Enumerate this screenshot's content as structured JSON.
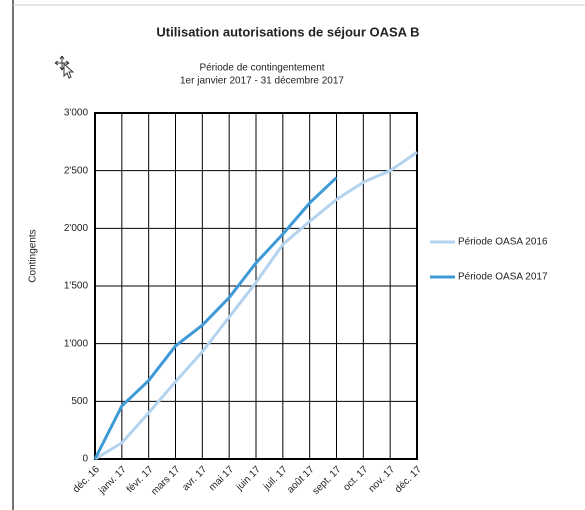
{
  "chart_data": {
    "type": "line",
    "title": "Utilisation autorisations de séjour OASA B",
    "subtitle": [
      "Période de contingentement",
      "1er janvier 2017 - 31 décembre 2017"
    ],
    "y_label": "Contingents",
    "categories": [
      "déc. 16",
      "janv. 17",
      "févr. 17",
      "mars 17",
      "avr. 17",
      "mai 17",
      "juin 17",
      "juil. 17",
      "août 17",
      "sept. 17",
      "oct. 17",
      "nov. 17",
      "déc. 17"
    ],
    "series": [
      {
        "name": "Période OASA 2016",
        "color": "#b4d3ef",
        "values": [
          0,
          140,
          400,
          670,
          930,
          1230,
          1530,
          1860,
          2060,
          2250,
          2400,
          2500,
          2660
        ]
      },
      {
        "name": "Période OASA 2017",
        "color": "#3e9ad6",
        "values": [
          0,
          460,
          680,
          980,
          1160,
          1400,
          1700,
          1950,
          2220,
          2440,
          null,
          null,
          null
        ]
      }
    ],
    "ylim": [
      0,
      3000
    ],
    "yticks": [
      0,
      500,
      {
        "value": 1000,
        "label": "1'000"
      },
      {
        "value": 1500,
        "label": "1'500"
      },
      {
        "value": 2000,
        "label": "2'000"
      },
      {
        "value": 2500,
        "label": "2'500"
      },
      {
        "value": 3000,
        "label": "3'000"
      }
    ],
    "grid": true,
    "legend": "right"
  }
}
